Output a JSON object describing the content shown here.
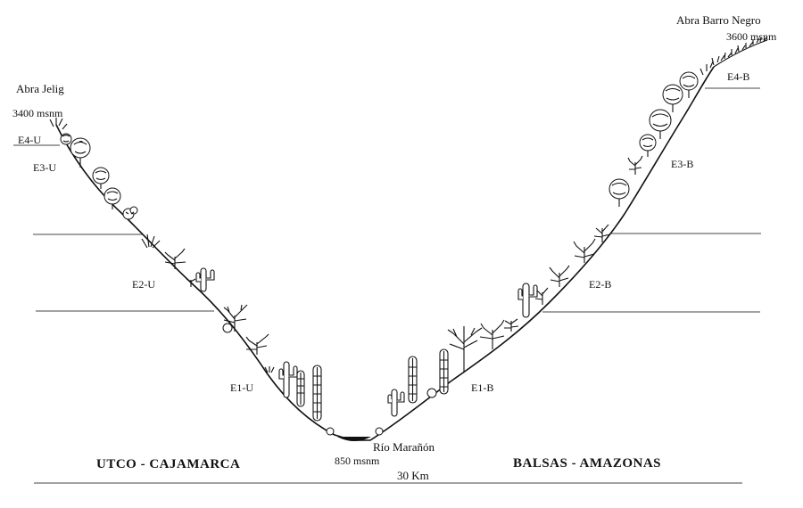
{
  "diagram": {
    "left_pass": {
      "name": "Abra Jelig",
      "altitude": "3400 msnm"
    },
    "right_pass": {
      "name": "Abra Barro Negro",
      "altitude": "3600 msnm"
    },
    "river": {
      "name": "Río Marañón",
      "altitude": "850 msnm"
    },
    "left_region": "UTCO - CAJAMARCA",
    "right_region": "BALSAS - AMAZONAS",
    "distance": "30 Km",
    "zones_left": [
      "E4-U",
      "E3-U",
      "E2-U",
      "E1-U"
    ],
    "zones_right": [
      "E4-B",
      "E3-B",
      "E2-B",
      "E1-B"
    ]
  }
}
